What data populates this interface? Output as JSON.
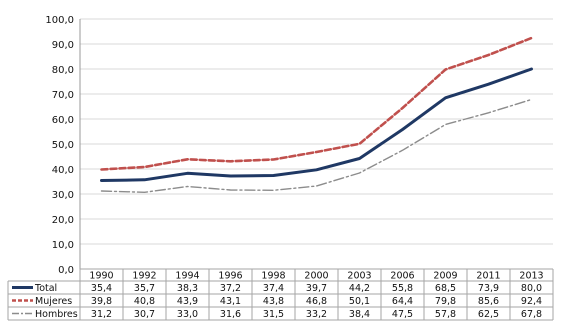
{
  "chart_data": {
    "type": "line",
    "title": "",
    "xlabel": "",
    "ylabel": "",
    "categories": [
      "1990",
      "1992",
      "1994",
      "1996",
      "1998",
      "2000",
      "2003",
      "2006",
      "2009",
      "2011",
      "2013"
    ],
    "ylim": [
      0,
      100
    ],
    "yticks": [
      "0,0",
      "10,0",
      "20,0",
      "30,0",
      "40,0",
      "50,0",
      "60,0",
      "70,0",
      "80,0",
      "90,0",
      "100,0"
    ],
    "grid": true,
    "legend": "data-table",
    "series": [
      {
        "name": "Total",
        "color": "#1f3864",
        "style": "solid",
        "values": [
          35.4,
          35.7,
          38.3,
          37.2,
          37.4,
          39.7,
          44.2,
          55.8,
          68.5,
          73.9,
          80.0
        ],
        "labels": [
          "35,4",
          "35,7",
          "38,3",
          "37,2",
          "37,4",
          "39,7",
          "44,2",
          "55,8",
          "68,5",
          "73,9",
          "80,0"
        ]
      },
      {
        "name": "Mujeres",
        "color": "#c0504d",
        "style": "dashed",
        "values": [
          39.8,
          40.8,
          43.9,
          43.1,
          43.8,
          46.8,
          50.1,
          64.4,
          79.8,
          85.6,
          92.4
        ],
        "labels": [
          "39,8",
          "40,8",
          "43,9",
          "43,1",
          "43,8",
          "46,8",
          "50,1",
          "64,4",
          "79,8",
          "85,6",
          "92,4"
        ]
      },
      {
        "name": "Hombres",
        "color": "#8c8c8c",
        "style": "dashdot",
        "values": [
          31.2,
          30.7,
          33.0,
          31.6,
          31.5,
          33.2,
          38.4,
          47.5,
          57.8,
          62.5,
          67.8
        ],
        "labels": [
          "31,2",
          "30,7",
          "33,0",
          "31,6",
          "31,5",
          "33,2",
          "38,4",
          "47,5",
          "57,8",
          "62,5",
          "67,8"
        ]
      }
    ]
  }
}
